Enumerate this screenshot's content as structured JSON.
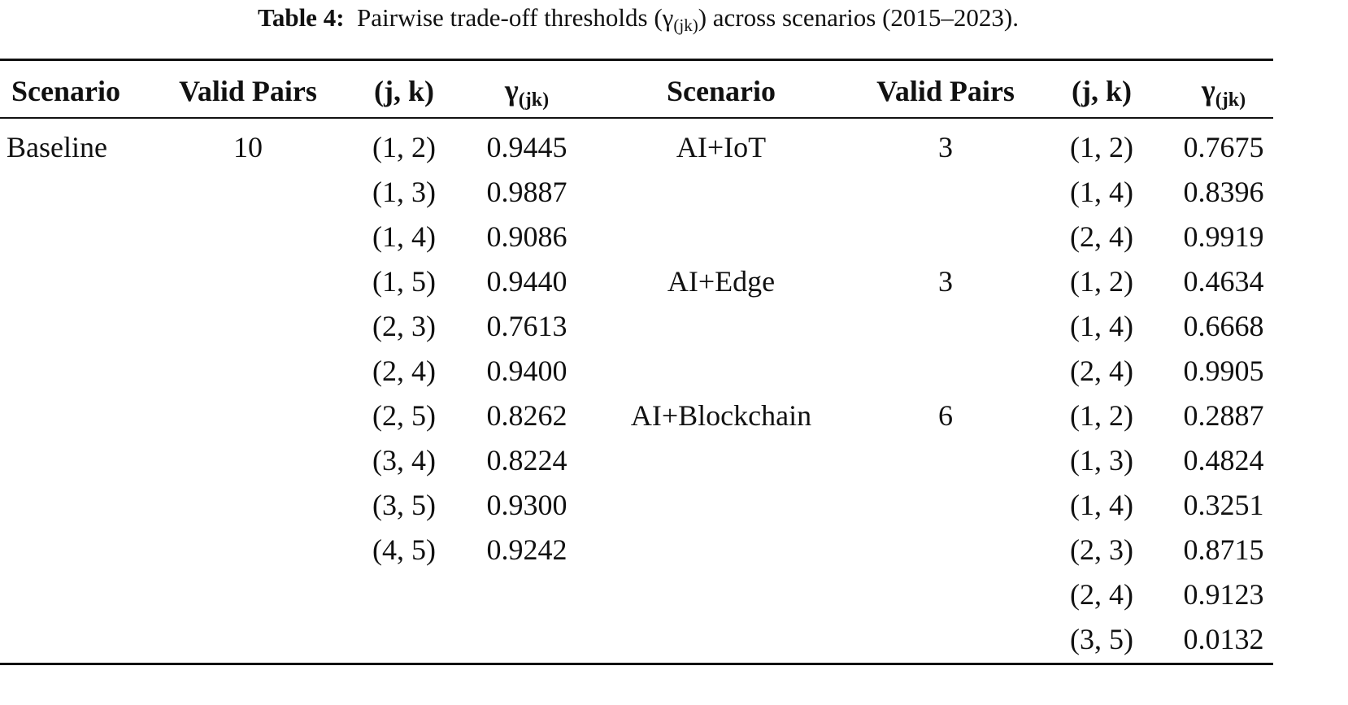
{
  "caption": {
    "label": "Table 4:",
    "text_before": "Pairwise trade-off thresholds (γ",
    "subscript": "(jk)",
    "text_after": ") across scenarios (2015–2023)."
  },
  "table": {
    "header": {
      "scenario": "Scenario",
      "valid_pairs": "Valid Pairs",
      "jk": "(j, k)",
      "gamma": {
        "symbol": "γ",
        "subscript": "(jk)"
      }
    },
    "left": [
      {
        "scenario": "Baseline",
        "valid_pairs": 10,
        "pairs": [
          {
            "jk": "(1, 2)",
            "gamma": "0.9445"
          },
          {
            "jk": "(1, 3)",
            "gamma": "0.9887"
          },
          {
            "jk": "(1, 4)",
            "gamma": "0.9086"
          },
          {
            "jk": "(1, 5)",
            "gamma": "0.9440"
          },
          {
            "jk": "(2, 3)",
            "gamma": "0.7613"
          },
          {
            "jk": "(2, 4)",
            "gamma": "0.9400"
          },
          {
            "jk": "(2, 5)",
            "gamma": "0.8262"
          },
          {
            "jk": "(3, 4)",
            "gamma": "0.8224"
          },
          {
            "jk": "(3, 5)",
            "gamma": "0.9300"
          },
          {
            "jk": "(4, 5)",
            "gamma": "0.9242"
          }
        ]
      }
    ],
    "right": [
      {
        "scenario": "AI+IoT",
        "valid_pairs": 3,
        "pairs": [
          {
            "jk": "(1, 2)",
            "gamma": "0.7675"
          },
          {
            "jk": "(1, 4)",
            "gamma": "0.8396"
          },
          {
            "jk": "(2, 4)",
            "gamma": "0.9919"
          }
        ]
      },
      {
        "scenario": "AI+Edge",
        "valid_pairs": 3,
        "pairs": [
          {
            "jk": "(1, 2)",
            "gamma": "0.4634"
          },
          {
            "jk": "(1, 4)",
            "gamma": "0.6668"
          },
          {
            "jk": "(2, 4)",
            "gamma": "0.9905"
          }
        ]
      },
      {
        "scenario": "AI+Blockchain",
        "valid_pairs": 6,
        "pairs": [
          {
            "jk": "(1, 2)",
            "gamma": "0.2887"
          },
          {
            "jk": "(1, 3)",
            "gamma": "0.4824"
          },
          {
            "jk": "(1, 4)",
            "gamma": "0.3251"
          },
          {
            "jk": "(2, 3)",
            "gamma": "0.8715"
          },
          {
            "jk": "(2, 4)",
            "gamma": "0.9123"
          },
          {
            "jk": "(3, 5)",
            "gamma": "0.0132"
          }
        ]
      }
    ]
  }
}
